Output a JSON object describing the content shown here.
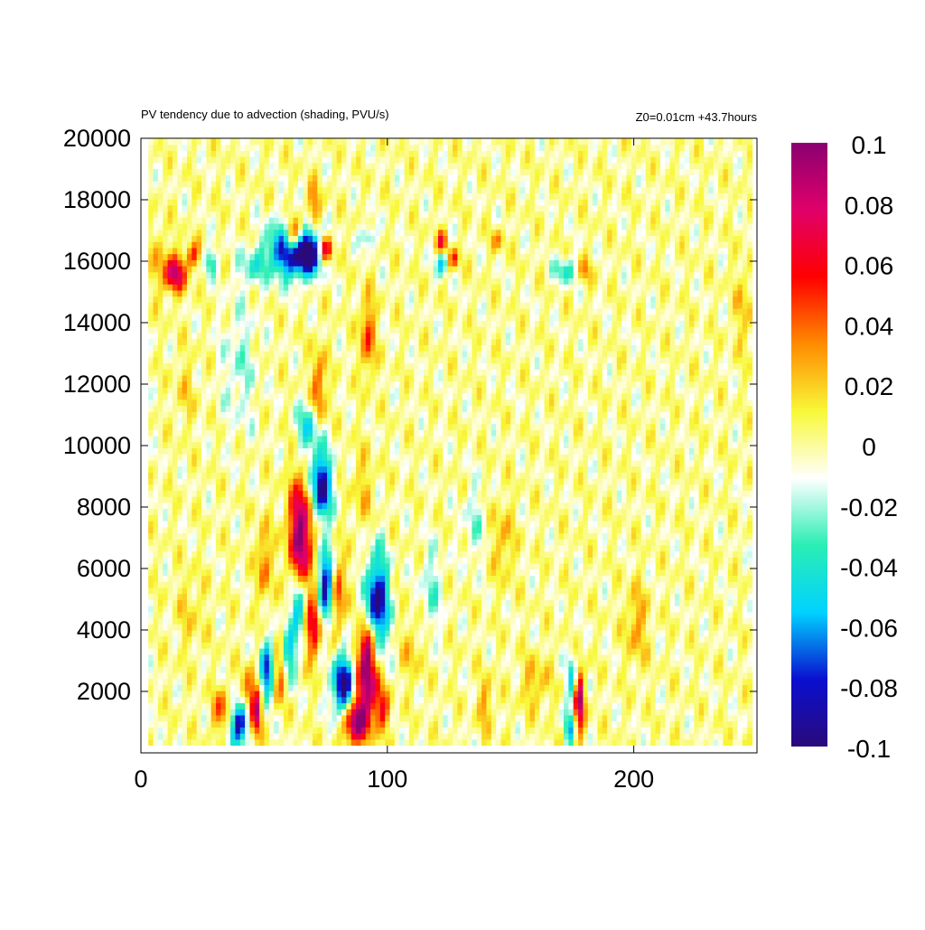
{
  "chart_data": {
    "type": "heatmap",
    "title": "PV tendency due to advection (shading, PVU/s)",
    "subtitle_right": "Z0=0.01cm   +43.7hours",
    "xlabel": "",
    "ylabel": "",
    "xlim": [
      0,
      250
    ],
    "ylim": [
      0,
      20000
    ],
    "x_ticks": [
      0,
      100,
      200
    ],
    "y_ticks": [
      2000,
      4000,
      6000,
      8000,
      10000,
      12000,
      14000,
      16000,
      18000,
      20000
    ],
    "colorbar": {
      "min": -0.1,
      "max": 0.1,
      "ticks": [
        0.1,
        0.08,
        0.06,
        0.04,
        0.02,
        0,
        -0.02,
        -0.04,
        -0.06,
        -0.08,
        -0.1
      ],
      "tick_labels": [
        "0.1",
        "0.08",
        "0.06",
        "0.04",
        "0.02",
        "0",
        "-0.02",
        "-0.04",
        "-0.06",
        "-0.08",
        "-0.1"
      ],
      "colors": [
        "#2a0a7a",
        "#0a0fd0",
        "#00d2ff",
        "#2aeeb4",
        "#ffffff",
        "#f8f838",
        "#ff8c00",
        "#ff0000",
        "#e0006a",
        "#8a0070"
      ]
    },
    "features": [
      {
        "x": 60,
        "y": 16400,
        "value": -0.1,
        "sx": 6,
        "sy": 600
      },
      {
        "x": 68,
        "y": 16300,
        "value": -0.09,
        "sx": 4,
        "sy": 500
      },
      {
        "x": 62,
        "y": 16800,
        "value": 0.1,
        "sx": 3,
        "sy": 400
      },
      {
        "x": 75,
        "y": 16400,
        "value": 0.08,
        "sx": 2,
        "sy": 300
      },
      {
        "x": 70,
        "y": 17800,
        "value": 0.04,
        "sx": 2,
        "sy": 500
      },
      {
        "x": 14,
        "y": 15600,
        "value": 0.08,
        "sx": 3,
        "sy": 400
      },
      {
        "x": 21,
        "y": 16200,
        "value": 0.05,
        "sx": 2,
        "sy": 300
      },
      {
        "x": 28,
        "y": 16000,
        "value": -0.04,
        "sx": 2,
        "sy": 300
      },
      {
        "x": 45,
        "y": 15800,
        "value": -0.03,
        "sx": 4,
        "sy": 400
      },
      {
        "x": 122,
        "y": 16600,
        "value": 0.06,
        "sx": 1.5,
        "sy": 300
      },
      {
        "x": 122,
        "y": 16000,
        "value": -0.06,
        "sx": 1.5,
        "sy": 300
      },
      {
        "x": 127,
        "y": 16100,
        "value": 0.05,
        "sx": 1.5,
        "sy": 250
      },
      {
        "x": 145,
        "y": 16700,
        "value": 0.03,
        "sx": 2,
        "sy": 250
      },
      {
        "x": 172,
        "y": 15700,
        "value": -0.04,
        "sx": 3,
        "sy": 300
      },
      {
        "x": 180,
        "y": 15700,
        "value": 0.03,
        "sx": 2,
        "sy": 300
      },
      {
        "x": 92,
        "y": 16800,
        "value": -0.04,
        "sx": 2,
        "sy": 250
      },
      {
        "x": 73,
        "y": 8700,
        "value": -0.1,
        "sx": 3,
        "sy": 800
      },
      {
        "x": 65,
        "y": 7200,
        "value": 0.1,
        "sx": 3.5,
        "sy": 1200
      },
      {
        "x": 68,
        "y": 10600,
        "value": -0.05,
        "sx": 3,
        "sy": 600
      },
      {
        "x": 72,
        "y": 11800,
        "value": 0.05,
        "sx": 2,
        "sy": 900
      },
      {
        "x": 92,
        "y": 13600,
        "value": 0.05,
        "sx": 2,
        "sy": 900
      },
      {
        "x": 96,
        "y": 4900,
        "value": -0.1,
        "sx": 3,
        "sy": 1100
      },
      {
        "x": 92,
        "y": 3600,
        "value": 0.08,
        "sx": 2,
        "sy": 500
      },
      {
        "x": 80,
        "y": 5200,
        "value": 0.05,
        "sx": 2,
        "sy": 900
      },
      {
        "x": 75,
        "y": 5500,
        "value": -0.1,
        "sx": 2,
        "sy": 800
      },
      {
        "x": 70,
        "y": 4200,
        "value": 0.07,
        "sx": 2,
        "sy": 800
      },
      {
        "x": 64,
        "y": 4800,
        "value": -0.07,
        "sx": 2,
        "sy": 600
      },
      {
        "x": 60,
        "y": 3200,
        "value": -0.06,
        "sx": 2,
        "sy": 600
      },
      {
        "x": 56,
        "y": 2500,
        "value": 0.05,
        "sx": 2,
        "sy": 600
      },
      {
        "x": 82,
        "y": 2200,
        "value": -0.1,
        "sx": 3,
        "sy": 700
      },
      {
        "x": 92,
        "y": 2300,
        "value": 0.1,
        "sx": 3,
        "sy": 800
      },
      {
        "x": 87,
        "y": 1000,
        "value": 0.1,
        "sx": 3.5,
        "sy": 500
      },
      {
        "x": 98,
        "y": 1400,
        "value": 0.05,
        "sx": 2,
        "sy": 500
      },
      {
        "x": 40,
        "y": 1000,
        "value": -0.1,
        "sx": 2.5,
        "sy": 500
      },
      {
        "x": 44,
        "y": 1900,
        "value": 0.05,
        "sx": 2,
        "sy": 600
      },
      {
        "x": 47,
        "y": 1300,
        "value": 0.09,
        "sx": 1.5,
        "sy": 500
      },
      {
        "x": 51,
        "y": 2600,
        "value": -0.08,
        "sx": 2,
        "sy": 700
      },
      {
        "x": 33,
        "y": 1400,
        "value": 0.04,
        "sx": 3,
        "sy": 500
      },
      {
        "x": 50,
        "y": 6200,
        "value": 0.04,
        "sx": 2,
        "sy": 900
      },
      {
        "x": 178,
        "y": 1700,
        "value": 0.09,
        "sx": 1.5,
        "sy": 700
      },
      {
        "x": 175,
        "y": 2400,
        "value": -0.05,
        "sx": 1.5,
        "sy": 600
      },
      {
        "x": 174,
        "y": 800,
        "value": -0.05,
        "sx": 1.5,
        "sy": 400
      },
      {
        "x": 201,
        "y": 4200,
        "value": 0.03,
        "sx": 3,
        "sy": 900
      },
      {
        "x": 160,
        "y": 2300,
        "value": 0.025,
        "sx": 4,
        "sy": 600
      },
      {
        "x": 140,
        "y": 1600,
        "value": 0.03,
        "sx": 2,
        "sy": 600
      },
      {
        "x": 147,
        "y": 6900,
        "value": 0.025,
        "sx": 3,
        "sy": 900
      },
      {
        "x": 135,
        "y": 7500,
        "value": -0.02,
        "sx": 3,
        "sy": 900
      },
      {
        "x": 118,
        "y": 5300,
        "value": -0.025,
        "sx": 3,
        "sy": 1000
      },
      {
        "x": 110,
        "y": 3300,
        "value": 0.02,
        "sx": 3,
        "sy": 700
      },
      {
        "x": 20,
        "y": 4600,
        "value": 0.015,
        "sx": 4,
        "sy": 900
      },
      {
        "x": 90,
        "y": 8600,
        "value": 0.02,
        "sx": 3,
        "sy": 900
      },
      {
        "x": 40,
        "y": 12600,
        "value": -0.02,
        "sx": 5,
        "sy": 1500
      },
      {
        "x": 18,
        "y": 11800,
        "value": 0.015,
        "sx": 3,
        "sy": 800
      },
      {
        "x": 8,
        "y": 16000,
        "value": 0.02,
        "sx": 3,
        "sy": 800
      },
      {
        "x": 245,
        "y": 14500,
        "value": 0.02,
        "sx": 3,
        "sy": 1000
      }
    ]
  }
}
